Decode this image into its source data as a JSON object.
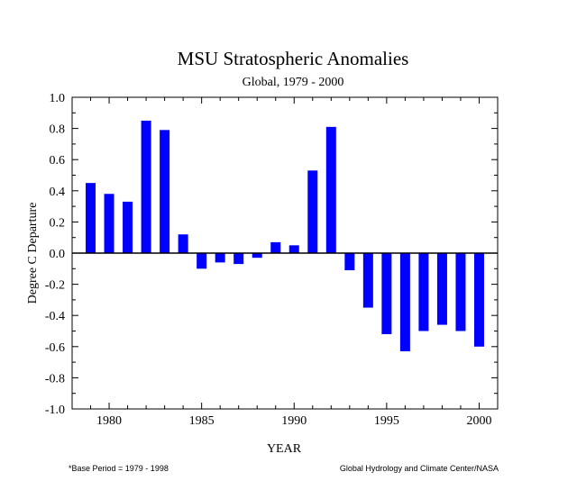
{
  "chart_data": {
    "type": "bar",
    "title": "MSU Stratospheric Anomalies",
    "subtitle": "Global, 1979 - 2000",
    "xlabel": "YEAR",
    "ylabel": "Degree C Departure",
    "xlim": [
      1978,
      2001
    ],
    "ylim": [
      -1.0,
      1.0
    ],
    "x_ticks": [
      1980,
      1985,
      1990,
      1995,
      2000
    ],
    "y_ticks": [
      1.0,
      0.8,
      0.6,
      0.4,
      0.2,
      0.0,
      -0.2,
      -0.4,
      -0.6,
      -0.8,
      -1.0
    ],
    "y_tick_labels": [
      "1.0",
      "0.8",
      "0.6",
      "0.4",
      "0.2",
      "0.0",
      "-0.2",
      "-0.4",
      "-0.6",
      "-0.8",
      "-1.0"
    ],
    "categories": [
      1979,
      1980,
      1981,
      1982,
      1983,
      1984,
      1985,
      1986,
      1987,
      1988,
      1989,
      1990,
      1991,
      1992,
      1993,
      1994,
      1995,
      1996,
      1997,
      1998,
      1999,
      2000
    ],
    "values": [
      0.45,
      0.38,
      0.33,
      0.85,
      0.79,
      0.12,
      -0.1,
      -0.06,
      -0.07,
      -0.03,
      0.07,
      0.05,
      0.53,
      0.81,
      -0.11,
      -0.35,
      -0.52,
      -0.63,
      -0.5,
      -0.46,
      -0.5,
      -0.6
    ],
    "bar_color": "#0000ff",
    "zero_line": true,
    "grid": false
  },
  "footnote_left": "*Base Period = 1979 - 1998",
  "footnote_right": "Global Hydrology and Climate Center/NASA"
}
